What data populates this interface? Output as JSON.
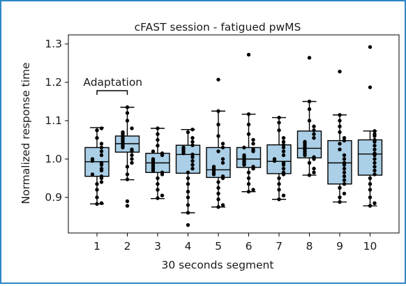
{
  "chart_data": {
    "type": "box",
    "title": "cFAST session - fatigued pwMS",
    "xlabel": "30 seconds segment",
    "ylabel": "Normalized response time",
    "ylim": [
      0.8,
      1.31
    ],
    "yticks": [
      0.9,
      1.0,
      1.1,
      1.2,
      1.3
    ],
    "ytick_labels": [
      "0.9",
      "1.0",
      "1.1",
      "1.2",
      "1.3"
    ],
    "categories": [
      "1",
      "2",
      "3",
      "4",
      "5",
      "6",
      "7",
      "8",
      "9",
      "10"
    ],
    "annotation": {
      "text": "Adaptation",
      "spans": [
        "1",
        "2"
      ]
    },
    "box_color": "#aacfe6",
    "point_color": "#000000",
    "boxes": [
      {
        "whisker_low": 0.883,
        "q1": 0.955,
        "median": 0.993,
        "q3": 1.03,
        "whisker_high": 1.082,
        "outliers": []
      },
      {
        "whisker_low": 0.946,
        "q1": 1.018,
        "median": 1.04,
        "q3": 1.06,
        "whisker_high": 1.135,
        "outliers": [
          0.89,
          0.878
        ]
      },
      {
        "whisker_low": 0.897,
        "q1": 0.965,
        "median": 0.99,
        "q3": 1.015,
        "whisker_high": 1.08,
        "outliers": []
      },
      {
        "whisker_low": 0.86,
        "q1": 0.963,
        "median": 1.012,
        "q3": 1.036,
        "whisker_high": 1.077,
        "outliers": [
          0.828
        ]
      },
      {
        "whisker_low": 0.875,
        "q1": 0.952,
        "median": 0.972,
        "q3": 1.03,
        "whisker_high": 1.125,
        "outliers": [
          1.207
        ]
      },
      {
        "whisker_low": 0.915,
        "q1": 0.978,
        "median": 1.0,
        "q3": 1.03,
        "whisker_high": 1.117,
        "outliers": [
          1.272
        ]
      },
      {
        "whisker_low": 0.895,
        "q1": 0.962,
        "median": 0.994,
        "q3": 1.037,
        "whisker_high": 1.108,
        "outliers": []
      },
      {
        "whisker_low": 0.958,
        "q1": 1.003,
        "median": 1.028,
        "q3": 1.073,
        "whisker_high": 1.15,
        "outliers": [
          1.264
        ]
      },
      {
        "whisker_low": 0.888,
        "q1": 0.935,
        "median": 0.99,
        "q3": 1.048,
        "whisker_high": 1.115,
        "outliers": [
          1.228
        ]
      },
      {
        "whisker_low": 0.878,
        "q1": 0.958,
        "median": 1.013,
        "q3": 1.05,
        "whisker_high": 1.073,
        "outliers": [
          1.292,
          1.187
        ]
      }
    ],
    "points": [
      [
        1.08,
        1.075,
        1.055,
        1.04,
        1.03,
        1.02,
        1.01,
        1.0,
        0.995,
        0.99,
        0.985,
        0.975,
        0.97,
        0.96,
        0.955,
        0.95,
        0.94,
        0.935,
        0.92,
        0.9,
        0.885,
        0.883
      ],
      [
        1.135,
        1.12,
        1.1,
        1.08,
        1.07,
        1.065,
        1.06,
        1.055,
        1.05,
        1.045,
        1.04,
        1.035,
        1.03,
        1.025,
        1.02,
        1.01,
        1.0,
        0.99,
        0.98,
        0.96,
        0.947,
        0.89,
        0.878
      ],
      [
        1.08,
        1.065,
        1.05,
        1.035,
        1.02,
        1.015,
        1.01,
        1.0,
        0.995,
        0.99,
        0.985,
        0.98,
        0.975,
        0.97,
        0.965,
        0.96,
        0.95,
        0.935,
        0.92,
        0.905,
        0.898
      ],
      [
        1.077,
        1.07,
        1.055,
        1.045,
        1.036,
        1.03,
        1.025,
        1.02,
        1.015,
        1.012,
        1.005,
        0.995,
        0.985,
        0.975,
        0.965,
        0.95,
        0.935,
        0.915,
        0.9,
        0.88,
        0.86,
        0.828
      ],
      [
        1.125,
        1.207,
        1.09,
        1.06,
        1.04,
        1.03,
        1.02,
        1.0,
        0.99,
        0.98,
        0.975,
        0.97,
        0.965,
        0.96,
        0.955,
        0.95,
        0.94,
        0.925,
        0.91,
        0.895,
        0.88,
        0.875
      ],
      [
        1.272,
        1.117,
        1.09,
        1.065,
        1.05,
        1.04,
        1.03,
        1.025,
        1.02,
        1.01,
        1.005,
        1.0,
        0.995,
        0.99,
        0.985,
        0.98,
        0.975,
        0.965,
        0.95,
        0.935,
        0.92,
        0.915
      ],
      [
        1.108,
        1.095,
        1.075,
        1.055,
        1.045,
        1.037,
        1.03,
        1.02,
        1.01,
        1.0,
        0.995,
        0.99,
        0.985,
        0.975,
        0.965,
        0.96,
        0.95,
        0.935,
        0.92,
        0.905,
        0.895
      ],
      [
        1.264,
        1.15,
        1.13,
        1.1,
        1.085,
        1.075,
        1.065,
        1.055,
        1.045,
        1.04,
        1.035,
        1.03,
        1.025,
        1.02,
        1.015,
        1.01,
        1.005,
        1.0,
        0.99,
        0.975,
        0.965,
        0.958
      ],
      [
        1.228,
        1.115,
        1.1,
        1.085,
        1.07,
        1.055,
        1.048,
        1.04,
        1.025,
        1.01,
        1.0,
        0.99,
        0.985,
        0.975,
        0.965,
        0.955,
        0.945,
        0.935,
        0.925,
        0.91,
        0.9,
        0.888
      ],
      [
        1.292,
        1.187,
        1.073,
        1.065,
        1.06,
        1.05,
        1.045,
        1.035,
        1.025,
        1.015,
        1.01,
        1.0,
        0.99,
        0.98,
        0.97,
        0.96,
        0.95,
        0.935,
        0.92,
        0.9,
        0.885,
        0.878
      ]
    ]
  }
}
